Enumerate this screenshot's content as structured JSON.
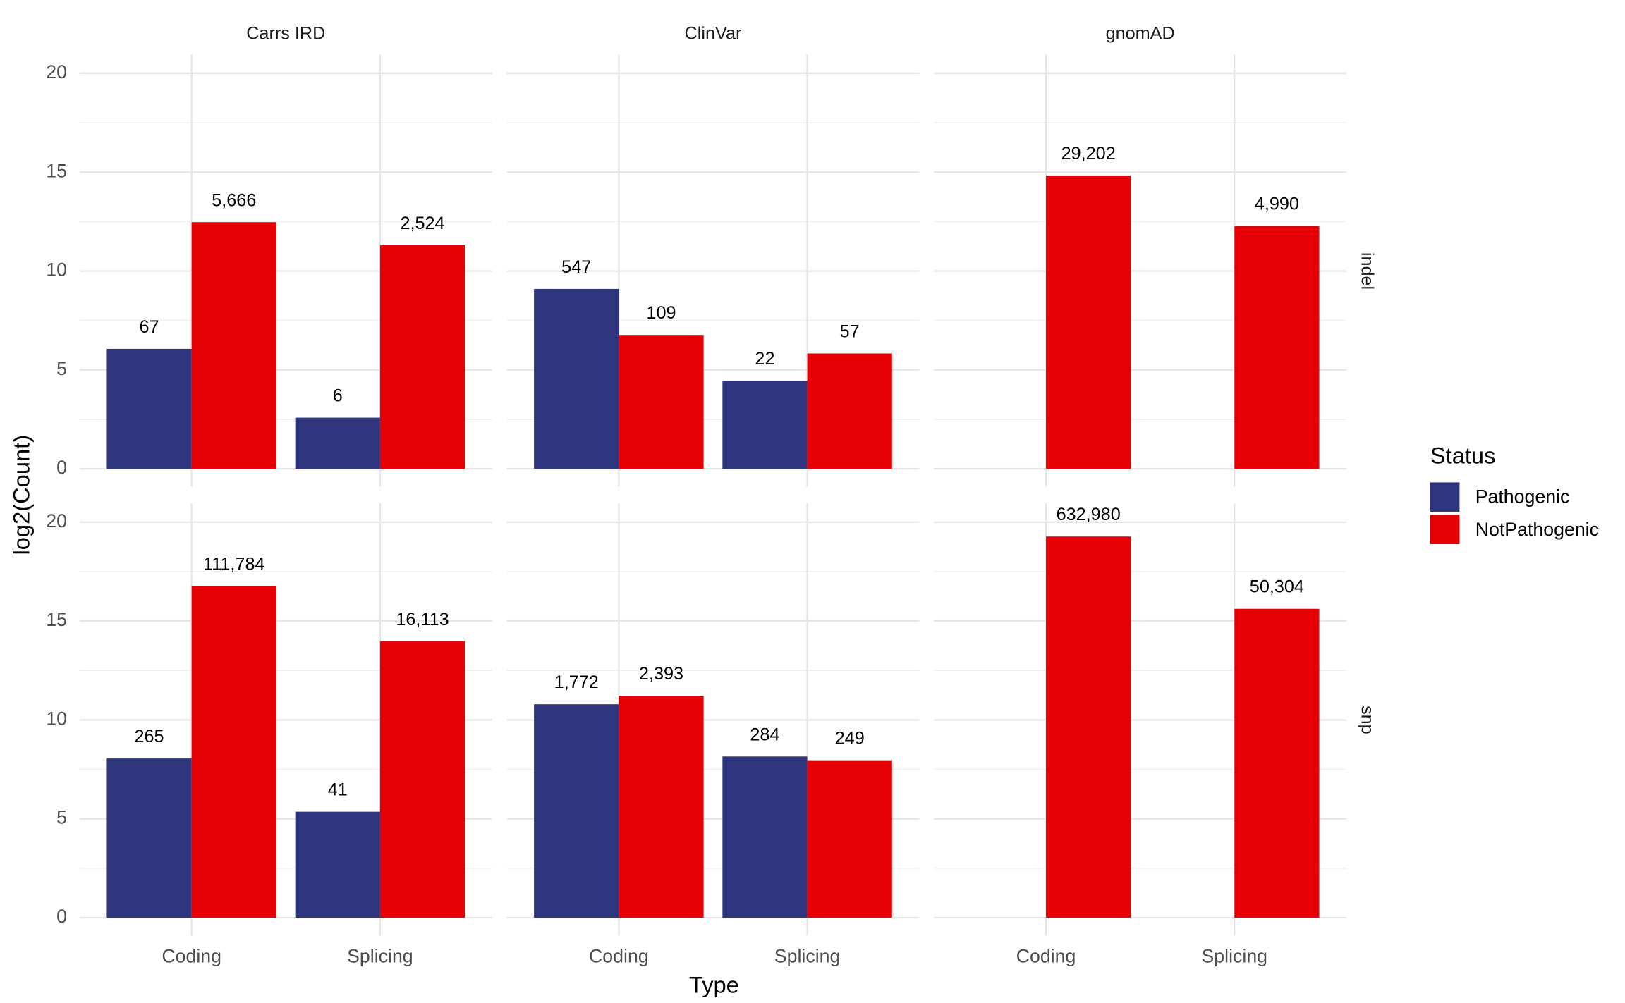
{
  "chart_data": {
    "type": "bar",
    "facet_columns": [
      "Carrs IRD",
      "ClinVar",
      "gnomAD"
    ],
    "facet_rows": [
      "indel",
      "snp"
    ],
    "categories": [
      "Coding",
      "Splicing"
    ],
    "x_label": "Type",
    "y_label": "log2(Count)",
    "legend_title": "Status",
    "legend_position": "right",
    "grid": true,
    "ylim": [
      0,
      20
    ],
    "yticks": [
      0,
      5,
      10,
      15,
      20
    ],
    "series": [
      {
        "name": "Pathogenic",
        "color": "#2e357c"
      },
      {
        "name": "NotPathogenic",
        "color": "#e60005"
      }
    ],
    "panels": [
      [
        {
          "series": [
            {
              "values": [
                6.0661,
                2.585
              ],
              "value_labels": [
                "67",
                "6"
              ]
            },
            {
              "values": [
                12.4681,
                11.3015
              ],
              "value_labels": [
                "5,666",
                "2,524"
              ]
            }
          ]
        },
        {
          "series": [
            {
              "values": [
                9.0954,
                4.4594
              ],
              "value_labels": [
                "547",
                "22"
              ]
            },
            {
              "values": [
                6.7682,
                5.8329
              ],
              "value_labels": [
                "109",
                "57"
              ]
            }
          ]
        },
        {
          "series": [
            {
              "values": [
                null,
                null
              ],
              "value_labels": [
                null,
                null
              ]
            },
            {
              "values": [
                14.8338,
                12.2848
              ],
              "value_labels": [
                "29,202",
                "4,990"
              ]
            }
          ]
        }
      ],
      [
        {
          "series": [
            {
              "values": [
                8.0498,
                5.3576
              ],
              "value_labels": [
                "265",
                "41"
              ]
            },
            {
              "values": [
                16.7703,
                13.9759
              ],
              "value_labels": [
                "111,784",
                "16,113"
              ]
            }
          ]
        },
        {
          "series": [
            {
              "values": [
                10.7912,
                8.1497
              ],
              "value_labels": [
                "1,772",
                "284"
              ]
            },
            {
              "values": [
                11.2246,
                7.9601
              ],
              "value_labels": [
                "2,393",
                "249"
              ]
            }
          ]
        },
        {
          "series": [
            {
              "values": [
                null,
                null
              ],
              "value_labels": [
                null,
                null
              ]
            },
            {
              "values": [
                19.2718,
                15.6184
              ],
              "value_labels": [
                "632,980",
                "50,304"
              ]
            }
          ]
        }
      ]
    ]
  }
}
